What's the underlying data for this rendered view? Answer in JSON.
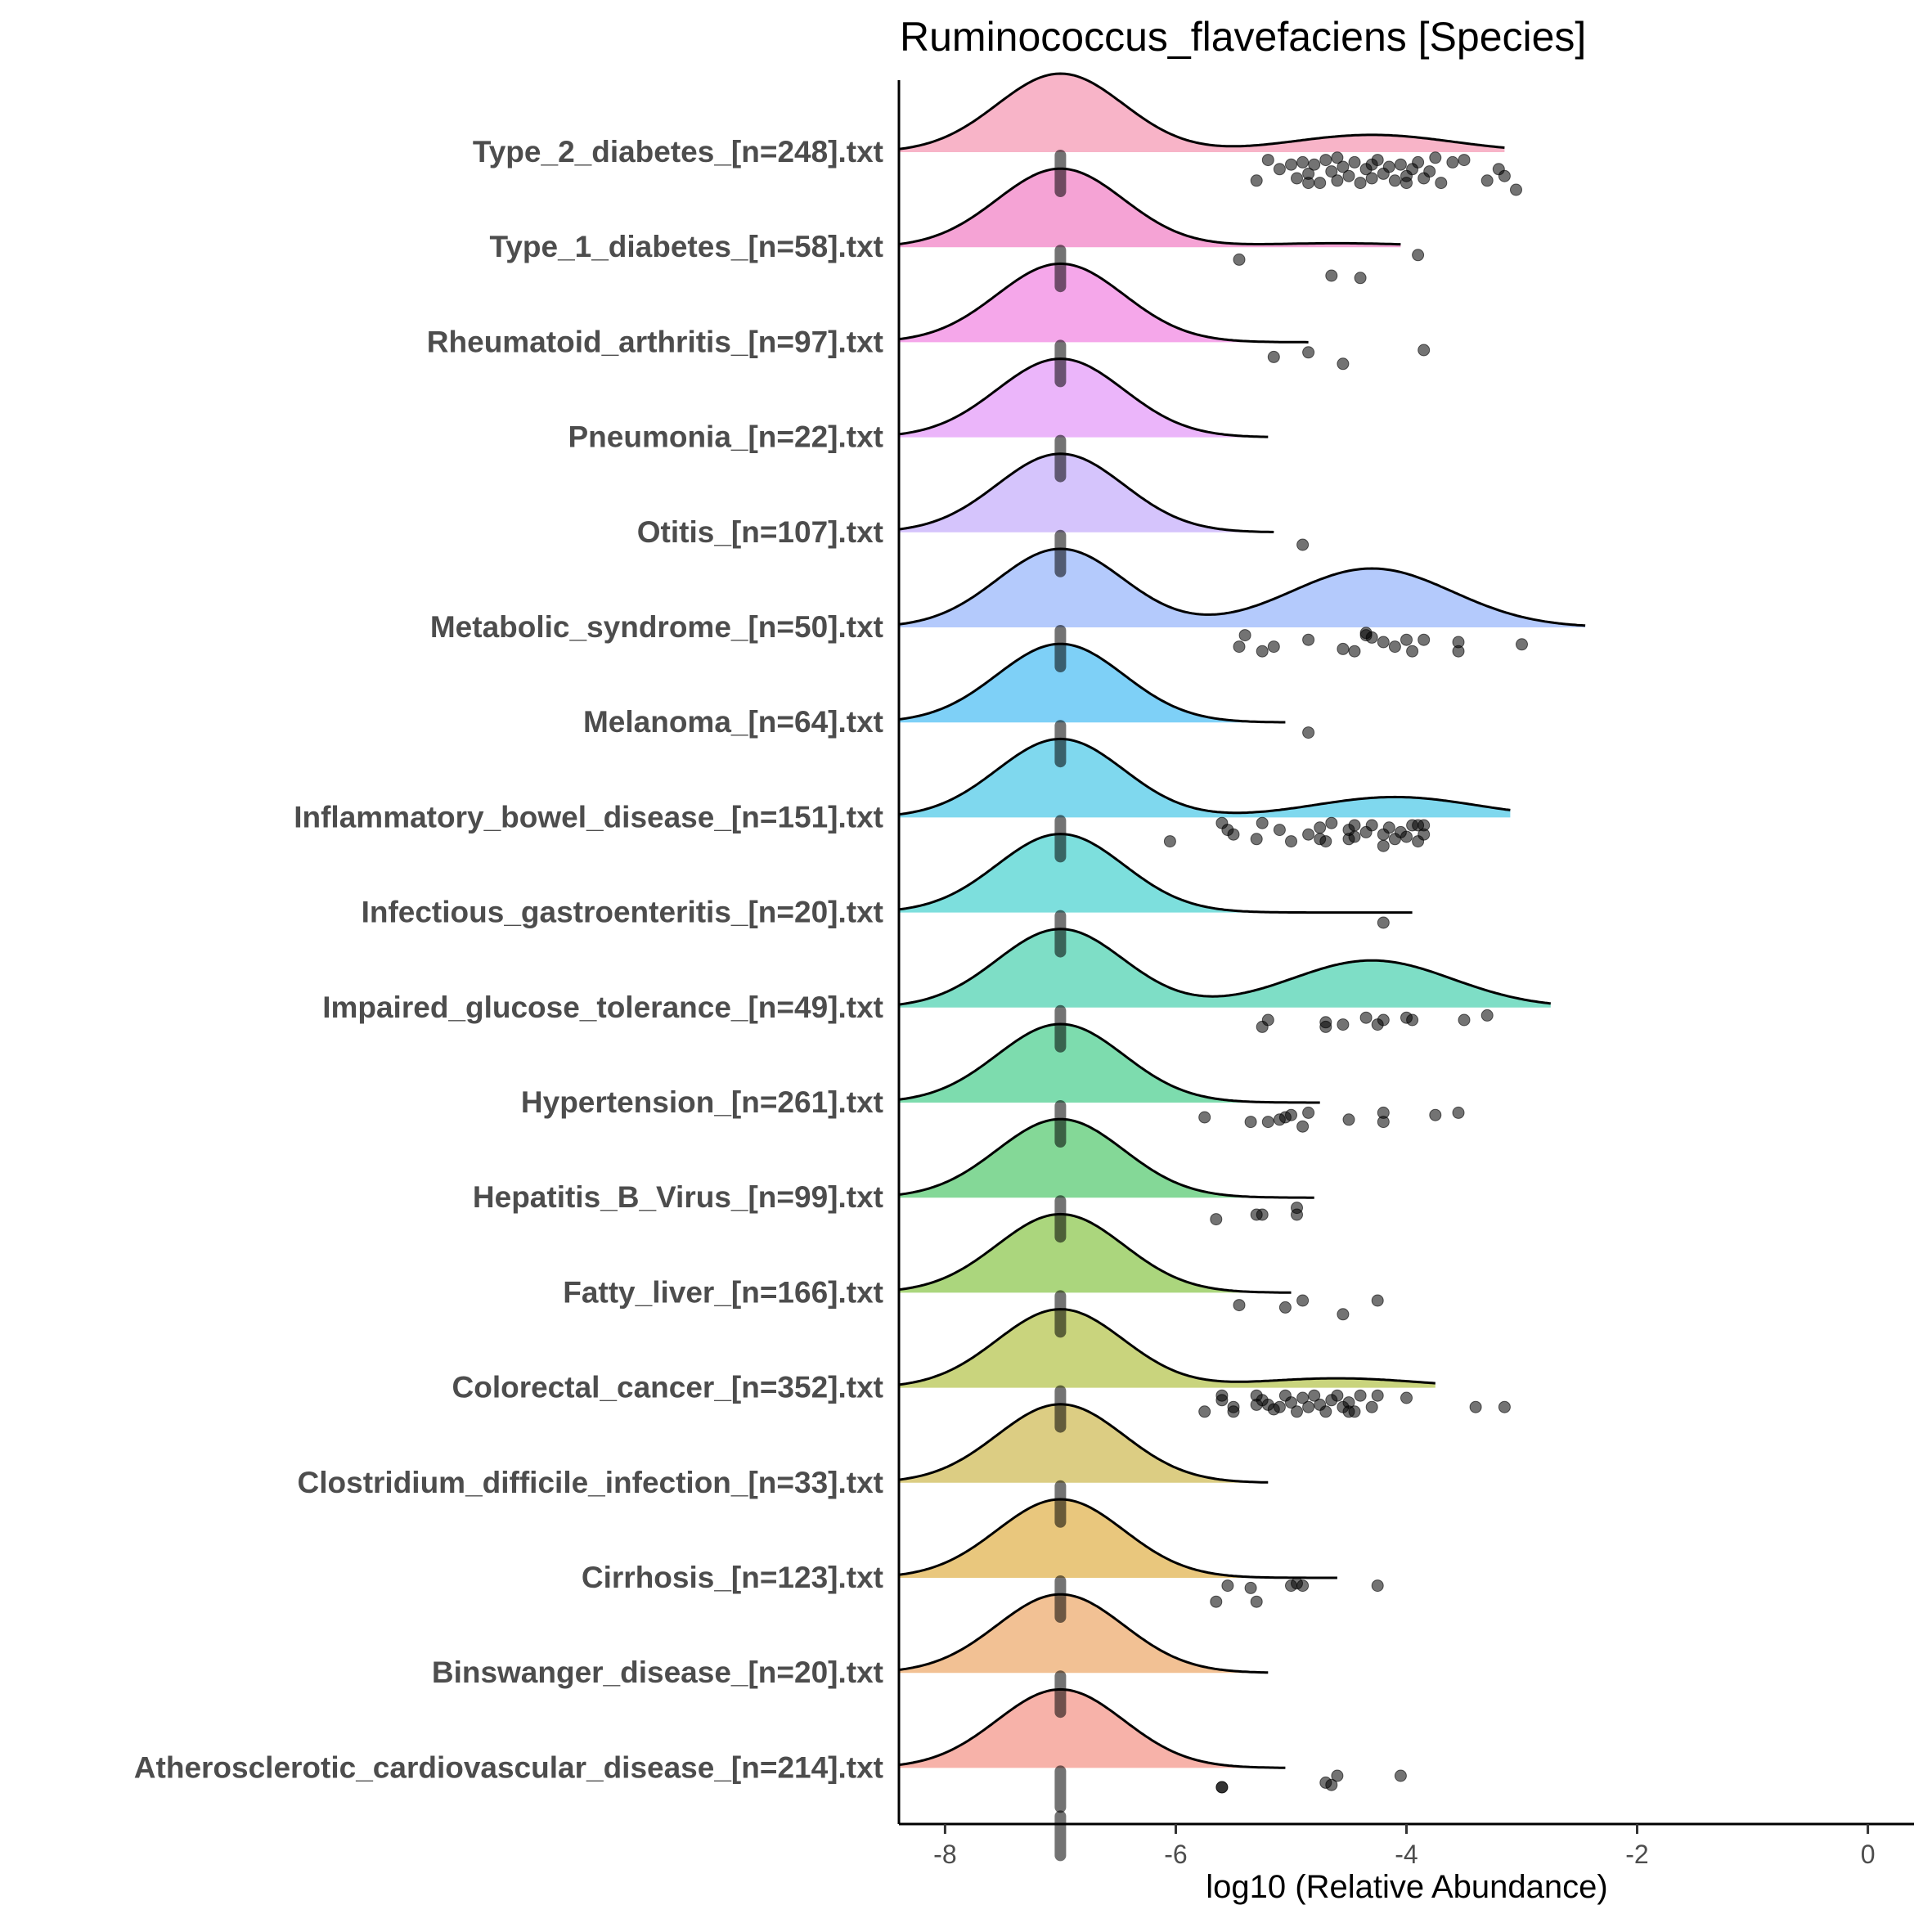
{
  "chart_data": {
    "type": "ridgeline",
    "title": "Ruminococcus_flavefaciens [Species]",
    "xlabel": "log10 (Relative Abundance)",
    "ylabel": "",
    "xlim": [
      -8.4,
      0.4
    ],
    "xticks": [
      -8,
      -6,
      -4,
      -2,
      0
    ],
    "xtick_labels": [
      "-8",
      "-6",
      "-4",
      "-2",
      "0"
    ],
    "grid": false,
    "legend": "none",
    "mode_x": -7,
    "categories": [
      {
        "label": "Type_2_diabetes_[n=248].txt",
        "color": "#f8b4c8",
        "xmax": -3.15,
        "sec_mode": -4.3,
        "sec_weight": 0.22,
        "points": [
          [
            -5.2,
            0.1
          ],
          [
            -5.1,
            0.3
          ],
          [
            -5.0,
            0.2
          ],
          [
            -4.95,
            0.5
          ],
          [
            -4.9,
            0.15
          ],
          [
            -4.85,
            0.4
          ],
          [
            -4.8,
            0.2
          ],
          [
            -4.75,
            0.6
          ],
          [
            -4.7,
            0.1
          ],
          [
            -4.65,
            0.35
          ],
          [
            -4.6,
            0.55
          ],
          [
            -4.55,
            0.25
          ],
          [
            -4.5,
            0.45
          ],
          [
            -4.45,
            0.15
          ],
          [
            -4.4,
            0.6
          ],
          [
            -4.35,
            0.3
          ],
          [
            -4.3,
            0.5
          ],
          [
            -4.25,
            0.1
          ],
          [
            -4.2,
            0.4
          ],
          [
            -4.15,
            0.25
          ],
          [
            -4.1,
            0.55
          ],
          [
            -4.05,
            0.2
          ],
          [
            -4.0,
            0.45
          ],
          [
            -3.95,
            0.3
          ],
          [
            -3.9,
            0.15
          ],
          [
            -3.85,
            0.5
          ],
          [
            -3.8,
            0.35
          ],
          [
            -3.7,
            0.6
          ],
          [
            -3.6,
            0.15
          ],
          [
            -3.5,
            0.1
          ],
          [
            -3.3,
            0.55
          ],
          [
            -3.2,
            0.3
          ],
          [
            -3.15,
            0.45
          ],
          [
            -5.3,
            0.55
          ],
          [
            -4.85,
            0.6
          ],
          [
            -4.6,
            0.05
          ],
          [
            -4.3,
            0.2
          ],
          [
            -4.0,
            0.6
          ],
          [
            -3.75,
            0.05
          ],
          [
            -3.05,
            0.75
          ]
        ]
      },
      {
        "label": "Type_1_diabetes_[n=58].txt",
        "color": "#f5a3d5",
        "xmax": -4.05,
        "sec_mode": -4.6,
        "sec_weight": 0.05,
        "points": [
          [
            -5.45,
            0.2
          ],
          [
            -4.65,
            0.55
          ],
          [
            -4.4,
            0.6
          ],
          [
            -3.9,
            0.1
          ]
        ]
      },
      {
        "label": "Rheumatoid_arthritis_[n=97].txt",
        "color": "#f5a7ea",
        "xmax": -4.85,
        "sec_mode": -4.5,
        "sec_weight": 0.0,
        "points": [
          [
            -5.15,
            0.25
          ],
          [
            -4.85,
            0.15
          ],
          [
            -4.55,
            0.4
          ],
          [
            -3.85,
            0.1
          ]
        ]
      },
      {
        "label": "Pneumonia_[n=22].txt",
        "color": "#ebb5fa",
        "xmax": -5.2,
        "sec_mode": -4.5,
        "sec_weight": 0.0,
        "points": []
      },
      {
        "label": "Otitis_[n=107].txt",
        "color": "#d5c4fc",
        "xmax": -5.15,
        "sec_mode": -4.5,
        "sec_weight": 0.0,
        "points": [
          [
            -4.9,
            0.2
          ]
        ]
      },
      {
        "label": "Metabolic_syndrome_[n=50].txt",
        "color": "#b4cafc",
        "xmax": -2.45,
        "sec_mode": -4.3,
        "sec_weight": 0.75,
        "points": [
          [
            -5.4,
            0.1
          ],
          [
            -5.45,
            0.35
          ],
          [
            -5.15,
            0.35
          ],
          [
            -5.25,
            0.45
          ],
          [
            -4.85,
            0.2
          ],
          [
            -4.55,
            0.4
          ],
          [
            -4.45,
            0.45
          ],
          [
            -4.35,
            0.1
          ],
          [
            -4.3,
            0.15
          ],
          [
            -4.2,
            0.25
          ],
          [
            -4.1,
            0.35
          ],
          [
            -4.0,
            0.2
          ],
          [
            -3.95,
            0.45
          ],
          [
            -3.85,
            0.2
          ],
          [
            -3.55,
            0.25
          ],
          [
            -3.55,
            0.45
          ],
          [
            -3.0,
            0.3
          ],
          [
            -4.35,
            0.05
          ]
        ]
      },
      {
        "label": "Melanoma_[n=64].txt",
        "color": "#7ed0f7",
        "xmax": -5.05,
        "sec_mode": -4.5,
        "sec_weight": 0.0,
        "points": [
          [
            -4.85,
            0.15
          ]
        ]
      },
      {
        "label": "Inflammatory_bowel_disease_[n=151].txt",
        "color": "#7fd8ee",
        "xmax": -3.1,
        "sec_mode": -4.1,
        "sec_weight": 0.26,
        "points": [
          [
            -6.05,
            0.45
          ],
          [
            -5.6,
            0.05
          ],
          [
            -5.55,
            0.2
          ],
          [
            -5.5,
            0.3
          ],
          [
            -5.3,
            0.4
          ],
          [
            -5.25,
            0.05
          ],
          [
            -5.1,
            0.2
          ],
          [
            -5.0,
            0.45
          ],
          [
            -4.85,
            0.3
          ],
          [
            -4.75,
            0.15
          ],
          [
            -4.7,
            0.45
          ],
          [
            -4.65,
            0.05
          ],
          [
            -4.5,
            0.2
          ],
          [
            -4.5,
            0.4
          ],
          [
            -4.45,
            0.35
          ],
          [
            -4.35,
            0.25
          ],
          [
            -4.3,
            0.1
          ],
          [
            -4.2,
            0.3
          ],
          [
            -4.2,
            0.55
          ],
          [
            -4.15,
            0.15
          ],
          [
            -4.1,
            0.4
          ],
          [
            -4.05,
            0.25
          ],
          [
            -4.0,
            0.35
          ],
          [
            -3.95,
            0.1
          ],
          [
            -3.9,
            0.45
          ],
          [
            -3.85,
            0.1
          ],
          [
            -3.85,
            0.3
          ],
          [
            -4.45,
            0.1
          ],
          [
            -4.75,
            0.4
          ],
          [
            -3.9,
            0.1
          ]
        ]
      },
      {
        "label": "Infectious_gastroenteritis_[n=20].txt",
        "color": "#7ddfdd",
        "xmax": -3.95,
        "sec_mode": -4.3,
        "sec_weight": 0.0,
        "points": [
          [
            -4.2,
            0.15
          ]
        ]
      },
      {
        "label": "Impaired_glucose_tolerance_[n=49].txt",
        "color": "#7edec6",
        "xmax": -2.75,
        "sec_mode": -4.3,
        "sec_weight": 0.6,
        "points": [
          [
            -5.2,
            0.2
          ],
          [
            -5.25,
            0.35
          ],
          [
            -4.7,
            0.25
          ],
          [
            -4.7,
            0.35
          ],
          [
            -4.55,
            0.3
          ],
          [
            -4.35,
            0.15
          ],
          [
            -4.25,
            0.3
          ],
          [
            -4.2,
            0.2
          ],
          [
            -4.0,
            0.15
          ],
          [
            -3.95,
            0.2
          ],
          [
            -3.5,
            0.2
          ],
          [
            -3.3,
            0.1
          ]
        ]
      },
      {
        "label": "Hypertension_[n=261].txt",
        "color": "#7ddcae",
        "xmax": -4.75,
        "sec_mode": -4.3,
        "sec_weight": 0.0,
        "points": [
          [
            -5.75,
            0.25
          ],
          [
            -5.35,
            0.35
          ],
          [
            -5.2,
            0.35
          ],
          [
            -5.1,
            0.3
          ],
          [
            -5.05,
            0.25
          ],
          [
            -5.0,
            0.2
          ],
          [
            -4.9,
            0.45
          ],
          [
            -4.85,
            0.15
          ],
          [
            -4.5,
            0.3
          ],
          [
            -4.2,
            0.35
          ],
          [
            -4.2,
            0.15
          ],
          [
            -3.75,
            0.2
          ],
          [
            -3.55,
            0.15
          ]
        ]
      },
      {
        "label": "Hepatitis_B_Virus_[n=99].txt",
        "color": "#84d897",
        "xmax": -4.8,
        "sec_mode": -4.3,
        "sec_weight": 0.0,
        "points": [
          [
            -5.65,
            0.4
          ],
          [
            -5.3,
            0.3
          ],
          [
            -5.25,
            0.3
          ],
          [
            -4.95,
            0.15
          ],
          [
            -4.95,
            0.3
          ]
        ]
      },
      {
        "label": "Fatty_liver_[n=166].txt",
        "color": "#abd67d",
        "xmax": -5.0,
        "sec_mode": -4.3,
        "sec_weight": 0.0,
        "points": [
          [
            -5.45,
            0.2
          ],
          [
            -5.05,
            0.25
          ],
          [
            -4.9,
            0.1
          ],
          [
            -4.55,
            0.4
          ],
          [
            -4.25,
            0.1
          ]
        ]
      },
      {
        "label": "Colorectal_cancer_[n=352].txt",
        "color": "#c9d47d",
        "xmax": -3.75,
        "sec_mode": -4.6,
        "sec_weight": 0.12,
        "points": [
          [
            -5.6,
            0.1
          ],
          [
            -5.6,
            0.2
          ],
          [
            -5.5,
            0.35
          ],
          [
            -5.5,
            0.45
          ],
          [
            -5.75,
            0.45
          ],
          [
            -5.3,
            0.1
          ],
          [
            -5.25,
            0.2
          ],
          [
            -5.2,
            0.3
          ],
          [
            -5.15,
            0.4
          ],
          [
            -5.1,
            0.35
          ],
          [
            -5.05,
            0.1
          ],
          [
            -5.0,
            0.25
          ],
          [
            -4.95,
            0.45
          ],
          [
            -4.9,
            0.15
          ],
          [
            -4.85,
            0.35
          ],
          [
            -4.8,
            0.1
          ],
          [
            -4.75,
            0.3
          ],
          [
            -4.7,
            0.45
          ],
          [
            -4.65,
            0.2
          ],
          [
            -4.6,
            0.1
          ],
          [
            -4.55,
            0.35
          ],
          [
            -4.5,
            0.25
          ],
          [
            -4.45,
            0.45
          ],
          [
            -4.4,
            0.1
          ],
          [
            -4.3,
            0.35
          ],
          [
            -4.25,
            0.1
          ],
          [
            -4.0,
            0.15
          ],
          [
            -3.4,
            0.35
          ],
          [
            -3.15,
            0.35
          ],
          [
            -5.3,
            0.3
          ],
          [
            -4.5,
            0.45
          ]
        ]
      },
      {
        "label": "Clostridium_difficile_infection_[n=33].txt",
        "color": "#dccd83",
        "xmax": -5.2,
        "sec_mode": -4.3,
        "sec_weight": 0.0,
        "points": []
      },
      {
        "label": "Cirrhosis_[n=123].txt",
        "color": "#e9c77d",
        "xmax": -4.6,
        "sec_mode": -4.3,
        "sec_weight": 0.0,
        "points": [
          [
            -5.55,
            0.1
          ],
          [
            -5.35,
            0.15
          ],
          [
            -5.65,
            0.45
          ],
          [
            -5.3,
            0.45
          ],
          [
            -5.0,
            0.1
          ],
          [
            -4.95,
            0.05
          ],
          [
            -4.9,
            0.1
          ],
          [
            -4.25,
            0.1
          ]
        ]
      },
      {
        "label": "Binswanger_disease_[n=20].txt",
        "color": "#f2c194",
        "xmax": -5.2,
        "sec_mode": -4.3,
        "sec_weight": 0.0,
        "points": []
      },
      {
        "label": "Atherosclerotic_cardiovascular_disease_[n=214].txt",
        "color": "#f7b2a9",
        "xmax": -5.05,
        "sec_mode": -4.3,
        "sec_weight": 0.0,
        "points": [
          [
            -5.6,
            0.35
          ],
          [
            -5.6,
            0.35
          ],
          [
            -4.7,
            0.25
          ],
          [
            -4.65,
            0.3
          ],
          [
            -4.6,
            0.1
          ],
          [
            -4.05,
            0.1
          ]
        ]
      }
    ]
  }
}
